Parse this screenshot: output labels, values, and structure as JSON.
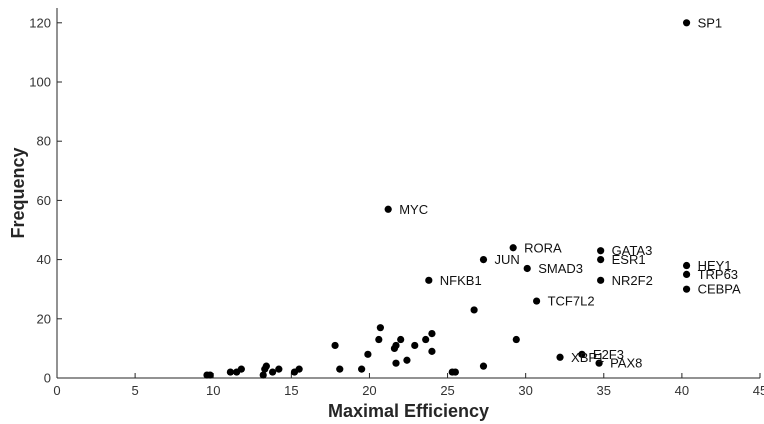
{
  "chart_data": {
    "type": "scatter",
    "xlabel": "Maximal Efficiency",
    "ylabel": "Frequency",
    "xlim": [
      0,
      45
    ],
    "ylim": [
      0,
      125
    ],
    "xticks": [
      "0",
      "5",
      "10",
      "15",
      "20",
      "25",
      "30",
      "35",
      "40",
      "45"
    ],
    "yticks": [
      "0",
      "20",
      "40",
      "60",
      "80",
      "100",
      "120"
    ],
    "grid": false,
    "point_color": "#000000",
    "points": [
      {
        "x": 40.3,
        "y": 120,
        "label": "SP1"
      },
      {
        "x": 21.2,
        "y": 57,
        "label": "MYC"
      },
      {
        "x": 29.2,
        "y": 44,
        "label": "RORA"
      },
      {
        "x": 34.8,
        "y": 43,
        "label": "GATA3"
      },
      {
        "x": 27.3,
        "y": 40,
        "label": "JUN"
      },
      {
        "x": 34.8,
        "y": 40,
        "label": "ESR1"
      },
      {
        "x": 40.3,
        "y": 38,
        "label": "HEY1"
      },
      {
        "x": 30.1,
        "y": 37,
        "label": "SMAD3"
      },
      {
        "x": 40.3,
        "y": 35,
        "label": "TRP63"
      },
      {
        "x": 23.8,
        "y": 33,
        "label": "NFKB1"
      },
      {
        "x": 34.8,
        "y": 33,
        "label": "NR2F2"
      },
      {
        "x": 40.3,
        "y": 30,
        "label": "CEBPA"
      },
      {
        "x": 30.7,
        "y": 26,
        "label": "TCF7L2"
      },
      {
        "x": 32.2,
        "y": 7,
        "label": "XBP1"
      },
      {
        "x": 33.6,
        "y": 8,
        "label": "E2F3"
      },
      {
        "x": 34.7,
        "y": 5,
        "label": "PAX8"
      },
      {
        "x": 9.6,
        "y": 1
      },
      {
        "x": 9.8,
        "y": 1
      },
      {
        "x": 11.1,
        "y": 2
      },
      {
        "x": 11.5,
        "y": 2
      },
      {
        "x": 11.8,
        "y": 3
      },
      {
        "x": 13.2,
        "y": 1
      },
      {
        "x": 13.3,
        "y": 3
      },
      {
        "x": 13.4,
        "y": 4
      },
      {
        "x": 13.8,
        "y": 2
      },
      {
        "x": 14.2,
        "y": 3
      },
      {
        "x": 15.2,
        "y": 2
      },
      {
        "x": 15.5,
        "y": 3
      },
      {
        "x": 17.8,
        "y": 11
      },
      {
        "x": 18.1,
        "y": 3
      },
      {
        "x": 19.5,
        "y": 3
      },
      {
        "x": 19.9,
        "y": 8
      },
      {
        "x": 20.6,
        "y": 13
      },
      {
        "x": 20.7,
        "y": 17
      },
      {
        "x": 21.6,
        "y": 10
      },
      {
        "x": 21.7,
        "y": 5
      },
      {
        "x": 21.7,
        "y": 11
      },
      {
        "x": 22.0,
        "y": 13
      },
      {
        "x": 22.4,
        "y": 6
      },
      {
        "x": 22.9,
        "y": 11
      },
      {
        "x": 23.6,
        "y": 13
      },
      {
        "x": 24.0,
        "y": 9
      },
      {
        "x": 24.0,
        "y": 15
      },
      {
        "x": 25.3,
        "y": 2
      },
      {
        "x": 25.5,
        "y": 2
      },
      {
        "x": 26.7,
        "y": 23
      },
      {
        "x": 27.3,
        "y": 4
      },
      {
        "x": 29.4,
        "y": 13
      }
    ]
  }
}
